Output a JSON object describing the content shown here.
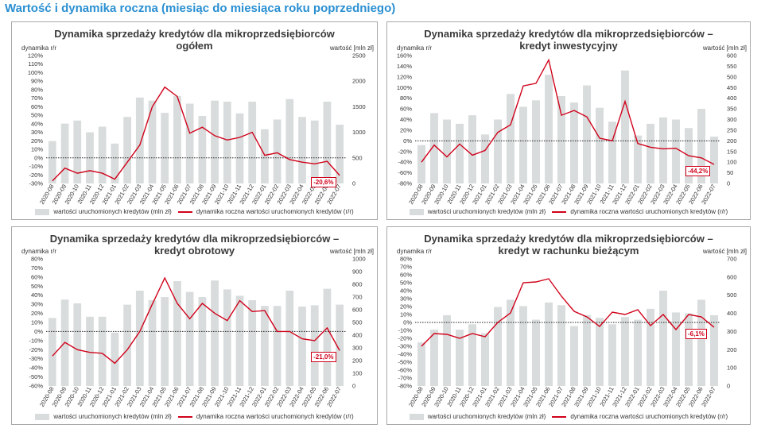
{
  "page_title": "Wartość i dynamika roczna (miesiąc do miesiąca roku poprzedniego)",
  "colors": {
    "title": "#2a8fd1",
    "bar": "#d9dcdc",
    "line": "#d0021b",
    "grid": "#222222"
  },
  "chart_data": [
    {
      "type": "bar",
      "title_line1": "Dynamika sprzedaży kredytów dla mikroprzedsiębiorców",
      "title_line2": "ogółem",
      "ylabel_left": "dynamika r/r",
      "ylabel_right": "wartość [mln zł]",
      "categories": [
        "2020-08",
        "2020-09",
        "2020-10",
        "2020-11",
        "2020-12",
        "2021-01",
        "2021-02",
        "2021-03",
        "2021-04",
        "2021-05",
        "2021-06",
        "2021-07",
        "2021-08",
        "2021-09",
        "2021-10",
        "2021-11",
        "2021-12",
        "2022-01",
        "2022-02",
        "2022-03",
        "2022-04",
        "2022-05",
        "2022-06",
        "2022-07"
      ],
      "left_axis": {
        "min": -30,
        "max": 120,
        "step": 10,
        "labels": [
          "120%",
          "110%",
          "100%",
          "90%",
          "80%",
          "70%",
          "60%",
          "50%",
          "40%",
          "30%",
          "20%",
          "10%",
          "0%",
          "-10%",
          "-20%",
          "-30%"
        ]
      },
      "right_axis": {
        "min": 0,
        "max": 2500,
        "step": 500,
        "labels": [
          "2500",
          "2000",
          "1500",
          "1000",
          "500",
          "0"
        ]
      },
      "series": [
        {
          "name": "wartości uruchomionych kredytów (mln zł)",
          "kind": "bar",
          "axis": "right",
          "values": [
            830,
            1170,
            1230,
            1000,
            1110,
            780,
            1300,
            1680,
            1620,
            1380,
            1710,
            1560,
            1320,
            1620,
            1600,
            1370,
            1600,
            1060,
            1250,
            1650,
            1300,
            1230,
            1600,
            1150
          ]
        },
        {
          "name": "dynamika roczna wartości uruchomionych kredytów (r/r)",
          "kind": "line",
          "axis": "left",
          "values": [
            -27,
            -12,
            -18,
            -15,
            -18,
            -25,
            -5,
            15,
            60,
            83,
            72,
            29,
            36,
            26,
            21,
            24,
            30,
            3,
            6,
            -2,
            -5,
            -7,
            -4,
            -20.6
          ]
        }
      ],
      "callout": "-20,6%"
    },
    {
      "type": "bar",
      "title_line1": "Dynamika sprzedaży kredytów dla mikroprzedsiębiorców –",
      "title_line2": "kredyt inwestycyjny",
      "ylabel_left": "dynamika r/r",
      "ylabel_right": "wartość [mln zł]",
      "categories": [
        "2020-08",
        "2020-09",
        "2020-10",
        "2020-11",
        "2020-12",
        "2021-01",
        "2021-02",
        "2021-03",
        "2021-04",
        "2021-05",
        "2021-06",
        "2021-07",
        "2021-08",
        "2021-09",
        "2021-10",
        "2021-11",
        "2021-12",
        "2022-01",
        "2022-02",
        "2022-03",
        "2022-04",
        "2022-05",
        "2022-06",
        "2022-07"
      ],
      "left_axis": {
        "min": -80,
        "max": 160,
        "step": 20,
        "labels": [
          "160%",
          "140%",
          "120%",
          "100%",
          "80%",
          "60%",
          "40%",
          "20%",
          "0%",
          "-20%",
          "-40%",
          "-60%",
          "-80%"
        ]
      },
      "right_axis": {
        "min": 0,
        "max": 600,
        "step": 50,
        "labels": [
          "600",
          "550",
          "500",
          "450",
          "400",
          "350",
          "300",
          "250",
          "200",
          "150",
          "100",
          "50",
          "0"
        ]
      },
      "series": [
        {
          "name": "wartości uruchomionych kredytów (mln zł)",
          "kind": "bar",
          "axis": "right",
          "values": [
            180,
            330,
            300,
            280,
            320,
            230,
            300,
            420,
            360,
            390,
            510,
            410,
            380,
            460,
            355,
            290,
            530,
            225,
            280,
            310,
            300,
            260,
            350,
            220
          ]
        },
        {
          "name": "dynamika roczna wartości uruchomionych kredytów (r/r)",
          "kind": "line",
          "axis": "left",
          "values": [
            -40,
            -8,
            -30,
            -6,
            -27,
            -18,
            16,
            30,
            103,
            108,
            152,
            48,
            57,
            45,
            5,
            0,
            74,
            -5,
            -12,
            -15,
            -14,
            -28,
            -32,
            -44.2
          ]
        }
      ],
      "callout": "-44,2%"
    },
    {
      "type": "bar",
      "title_line1": "Dynamika sprzedaży kredytów dla mikroprzedsiębiorców –",
      "title_line2": "kredyt obrotowy",
      "ylabel_left": "dynamika r/r",
      "ylabel_right": "wartość [mln zł]",
      "categories": [
        "2020-08",
        "2020-09",
        "2020-10",
        "2020-11",
        "2020-12",
        "2021-01",
        "2021-02",
        "2021-03",
        "2021-04",
        "2021-05",
        "2021-06",
        "2021-07",
        "2021-08",
        "2021-09",
        "2021-10",
        "2021-11",
        "2021-12",
        "2022-01",
        "2022-02",
        "2022-03",
        "2022-04",
        "2022-05",
        "2022-06",
        "2022-07"
      ],
      "left_axis": {
        "min": -60,
        "max": 80,
        "step": 10,
        "labels": [
          "80%",
          "70%",
          "60%",
          "50%",
          "40%",
          "30%",
          "20%",
          "10%",
          "0%",
          "-10%",
          "-20%",
          "-30%",
          "-40%",
          "-50%",
          "-60%"
        ]
      },
      "right_axis": {
        "min": 0,
        "max": 1000,
        "step": 100,
        "labels": [
          "1000",
          "900",
          "800",
          "700",
          "600",
          "500",
          "400",
          "300",
          "200",
          "100",
          "0"
        ]
      },
      "series": [
        {
          "name": "wartości uruchomionych kredytów (mln zł)",
          "kind": "bar",
          "axis": "right",
          "values": [
            535,
            680,
            650,
            545,
            545,
            420,
            640,
            750,
            675,
            700,
            825,
            740,
            700,
            830,
            760,
            710,
            675,
            630,
            630,
            750,
            625,
            635,
            765,
            640
          ]
        },
        {
          "name": "dynamika roczna wartości uruchomionych kredytów (r/r)",
          "kind": "line",
          "axis": "left",
          "values": [
            -27,
            -12,
            -20,
            -23,
            -24,
            -35,
            -20,
            0,
            30,
            59,
            31,
            14,
            31,
            20,
            12,
            34,
            22,
            23,
            0,
            0,
            -8,
            -10,
            4,
            -21
          ]
        }
      ],
      "callout": "-21,0%"
    },
    {
      "type": "bar",
      "title_line1": "Dynamika sprzedaży kredytów dla mikroprzedsiębiorców –",
      "title_line2": "kredyt w rachunku bieżącym",
      "ylabel_left": "dynamika r/r",
      "ylabel_right": "wartość [mln zł]",
      "categories": [
        "2020-08",
        "2020-09",
        "2020-10",
        "2020-11",
        "2020-12",
        "2021-01",
        "2021-02",
        "2021-03",
        "2021-04",
        "2021-05",
        "2021-06",
        "2021-07",
        "2021-08",
        "2021-09",
        "2021-10",
        "2021-11",
        "2021-12",
        "2022-01",
        "2022-02",
        "2022-03",
        "2022-04",
        "2022-05",
        "2022-06",
        "2022-07"
      ],
      "left_axis": {
        "min": -80,
        "max": 80,
        "step": 10,
        "labels": [
          "80%",
          "70%",
          "60%",
          "50%",
          "40%",
          "30%",
          "20%",
          "10%",
          "0%",
          "-10%",
          "-20%",
          "-30%",
          "-40%",
          "-50%",
          "-60%",
          "-70%",
          "-80%"
        ]
      },
      "right_axis": {
        "min": 0,
        "max": 700,
        "step": 100,
        "labels": [
          "700",
          "600",
          "500",
          "400",
          "300",
          "200",
          "100",
          "0"
        ]
      },
      "series": [
        {
          "name": "wartości uruchomionych kredytów (mln zł)",
          "kind": "bar",
          "axis": "right",
          "values": [
            240,
            310,
            390,
            310,
            340,
            290,
            435,
            475,
            440,
            365,
            460,
            445,
            330,
            390,
            375,
            340,
            380,
            365,
            425,
            525,
            405,
            400,
            475,
            390
          ]
        },
        {
          "name": "dynamika roczna wartości uruchomionych kredytów (r/r)",
          "kind": "line",
          "axis": "left",
          "values": [
            -30,
            -14,
            -15,
            -20,
            -14,
            -18,
            0,
            12,
            50,
            51,
            55,
            33,
            14,
            7,
            -5,
            13,
            10,
            16,
            -4,
            10,
            -9,
            10,
            7,
            -6.1
          ]
        }
      ],
      "callout": "-6,1%"
    }
  ]
}
